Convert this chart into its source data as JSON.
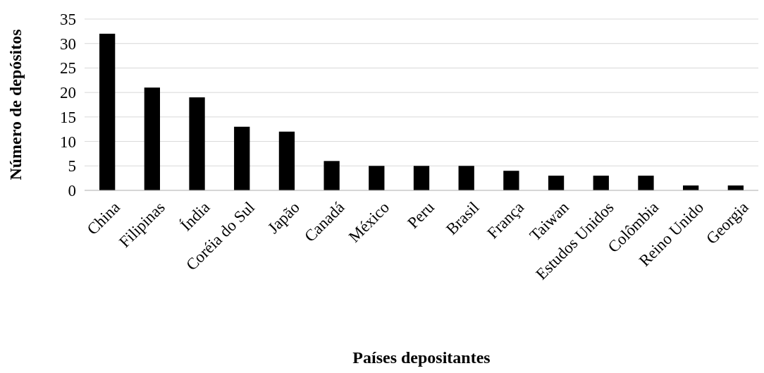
{
  "chart_data": {
    "type": "bar",
    "xlabel": "Países depositantes",
    "ylabel": "Número de depósitos",
    "categories": [
      "China",
      "Filipinas",
      "Índia",
      "Coréia do Sul",
      "Japão",
      "Canadá",
      "México",
      "Peru",
      "Brasil",
      "França",
      "Taiwan",
      "Estudos Unidos",
      "Colômbia",
      "Reino Unido",
      "Georgia"
    ],
    "values": [
      32,
      21,
      19,
      13,
      12,
      6,
      5,
      5,
      5,
      4,
      3,
      3,
      3,
      1,
      1
    ],
    "color": "#000000",
    "ylim": [
      0,
      35
    ],
    "yticks": [
      0,
      5,
      10,
      15,
      20,
      25,
      30,
      35
    ],
    "grid": "y"
  }
}
